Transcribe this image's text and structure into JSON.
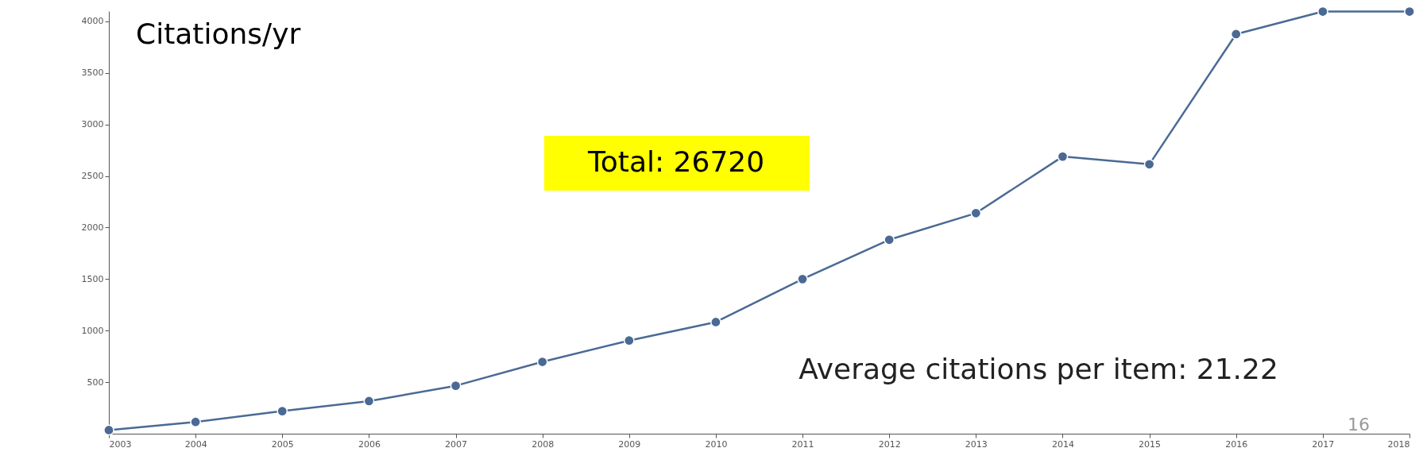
{
  "chart_data": {
    "type": "line",
    "title": "Citations/yr",
    "x": [
      2003,
      2004,
      2005,
      2006,
      2007,
      2008,
      2009,
      2010,
      2011,
      2012,
      2013,
      2014,
      2015,
      2016,
      2017,
      2018
    ],
    "series": [
      {
        "color": "#4a6a94",
        "values": [
          35,
          114,
          219,
          316,
          465,
          697,
          904,
          1083,
          1500,
          1882,
          2140,
          2689,
          2614,
          3877,
          4096,
          4096
        ]
      }
    ],
    "xlim": [
      2003,
      2018
    ],
    "xticks": [
      2003,
      2004,
      2005,
      2006,
      2007,
      2008,
      2009,
      2010,
      2011,
      2012,
      2013,
      2014,
      2015,
      2016,
      2017,
      2018
    ],
    "ylim": [
      0,
      4100
    ],
    "yticks": [
      500,
      1000,
      1500,
      2000,
      2500,
      3000,
      3500,
      4000
    ],
    "annotations": [
      "Total: 26720",
      "Average citations per item: 21.22",
      "16"
    ],
    "grid": false,
    "marker": "circle",
    "line_style": "solid"
  }
}
